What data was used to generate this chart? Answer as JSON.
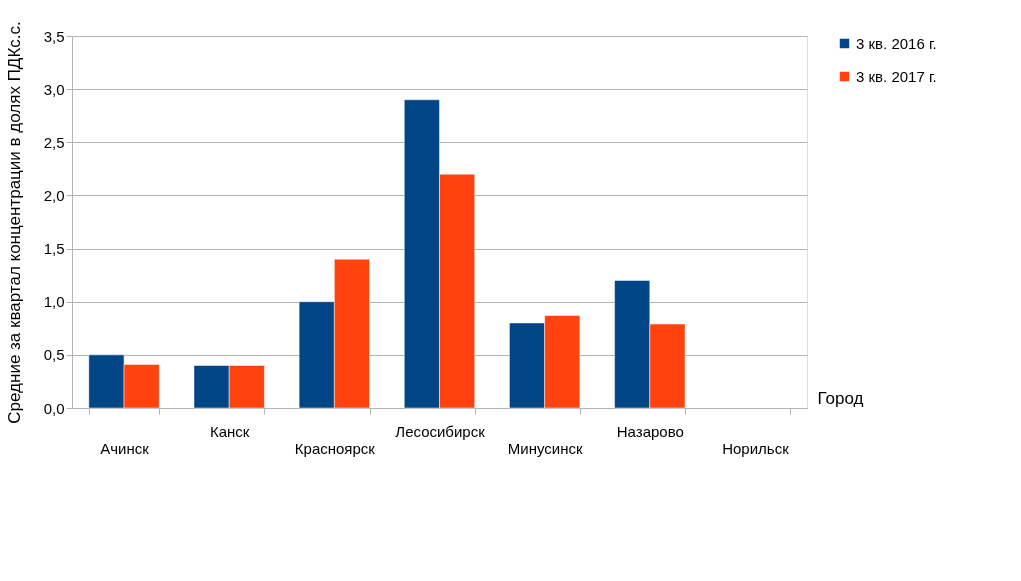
{
  "chart_data": {
    "type": "bar",
    "xlabel": "Город",
    "ylabel": "Средние за квартал концентрации в долях ПДКс.с.",
    "categories": [
      "Ачинск",
      "Канск",
      "Красноярск",
      "Лесосибирск",
      "Минусинск",
      "Назарово",
      "Норильск"
    ],
    "series": [
      {
        "name": "3 кв. 2016 г.",
        "color": "#004586",
        "values": [
          0.5,
          0.4,
          1.0,
          2.9,
          0.8,
          1.2,
          null
        ]
      },
      {
        "name": "3 кв. 2017 г.",
        "color": "#ff420e",
        "values": [
          0.41,
          0.4,
          1.4,
          2.2,
          0.87,
          0.79,
          null
        ]
      }
    ],
    "ylim": [
      0,
      3.5
    ],
    "yticks": [
      {
        "value": 0,
        "label": "0,0"
      },
      {
        "value": 0.5,
        "label": "0,5"
      },
      {
        "value": 1,
        "label": "1,0"
      },
      {
        "value": 1.5,
        "label": "1,5"
      },
      {
        "value": 2,
        "label": "2,0"
      },
      {
        "value": 2.5,
        "label": "2,5"
      },
      {
        "value": 3,
        "label": "3,0"
      },
      {
        "value": 3.5,
        "label": "3,5"
      }
    ],
    "grid": "y",
    "legend": "right"
  }
}
